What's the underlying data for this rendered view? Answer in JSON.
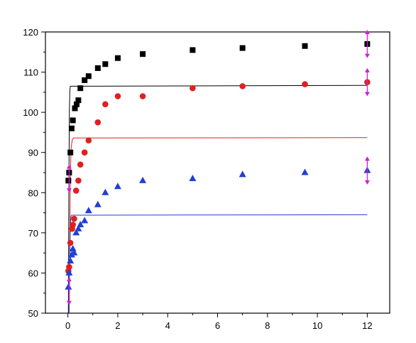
{
  "chart_data": {
    "type": "scatter",
    "title": "",
    "xlabel": "",
    "ylabel": "",
    "xlim": [
      -0.9,
      12.9
    ],
    "ylim": [
      50,
      120
    ],
    "x_ticks": [
      0,
      2,
      4,
      6,
      8,
      10,
      12
    ],
    "y_ticks": [
      50,
      60,
      70,
      80,
      90,
      100,
      110,
      120
    ],
    "grid": false,
    "series": [
      {
        "marker": "square",
        "color": "#000000",
        "points": [
          [
            0.02,
            83
          ],
          [
            0.05,
            85
          ],
          [
            0.1,
            90
          ],
          [
            0.15,
            96
          ],
          [
            0.2,
            98
          ],
          [
            0.28,
            101
          ],
          [
            0.35,
            102
          ],
          [
            0.42,
            103
          ],
          [
            0.5,
            106
          ],
          [
            0.67,
            108
          ],
          [
            0.83,
            109
          ],
          [
            1.2,
            111
          ],
          [
            1.5,
            112
          ],
          [
            2,
            113.5
          ],
          [
            3,
            114.5
          ],
          [
            5,
            115.5
          ],
          [
            7,
            116
          ],
          [
            9.5,
            116.5
          ],
          [
            12,
            117
          ]
        ],
        "fit": [
          [
            0.02,
            50
          ],
          [
            0.04,
            80
          ],
          [
            0.06,
            100
          ],
          [
            0.08,
            105.5
          ],
          [
            0.1,
            106.5
          ],
          [
            12,
            106.7
          ]
        ],
        "error_bar": {
          "x": 12,
          "low": 113.5,
          "high": 120.5
        }
      },
      {
        "marker": "circle",
        "color": "#e02020",
        "points": [
          [
            0.02,
            60.5
          ],
          [
            0.05,
            61.5
          ],
          [
            0.1,
            67.5
          ],
          [
            0.17,
            71
          ],
          [
            0.2,
            72
          ],
          [
            0.25,
            73.5
          ],
          [
            0.33,
            80.5
          ],
          [
            0.42,
            83
          ],
          [
            0.5,
            87
          ],
          [
            0.67,
            90
          ],
          [
            0.83,
            93
          ],
          [
            1.2,
            97.5
          ],
          [
            1.5,
            102
          ],
          [
            2,
            104
          ],
          [
            3,
            104
          ],
          [
            5,
            106
          ],
          [
            7,
            106.5
          ],
          [
            9.5,
            107
          ],
          [
            12,
            107.5
          ]
        ],
        "fit": [
          [
            0.05,
            50
          ],
          [
            0.08,
            70
          ],
          [
            0.1,
            85
          ],
          [
            0.13,
            91
          ],
          [
            0.17,
            93
          ],
          [
            0.22,
            93.6
          ],
          [
            12,
            93.7
          ]
        ],
        "error_bar": {
          "x": 12,
          "low": 104,
          "high": 111
        }
      },
      {
        "marker": "triangle",
        "color": "#1f3fd6",
        "points": [
          [
            0.02,
            56.5
          ],
          [
            0.05,
            60
          ],
          [
            0.1,
            63
          ],
          [
            0.15,
            64.5
          ],
          [
            0.2,
            66
          ],
          [
            0.25,
            65
          ],
          [
            0.33,
            70
          ],
          [
            0.42,
            71
          ],
          [
            0.5,
            72
          ],
          [
            0.67,
            73
          ],
          [
            0.83,
            75.5
          ],
          [
            1.2,
            77
          ],
          [
            1.5,
            80
          ],
          [
            2,
            81.5
          ],
          [
            3,
            83
          ],
          [
            5,
            83.5
          ],
          [
            7,
            84.5
          ],
          [
            9.5,
            85
          ],
          [
            12,
            85.5
          ]
        ],
        "fit": [
          [
            0.05,
            50
          ],
          [
            0.08,
            65
          ],
          [
            0.1,
            72
          ],
          [
            0.12,
            74
          ],
          [
            0.15,
            74.4
          ],
          [
            12,
            74.5
          ]
        ],
        "error_bar": {
          "x": 12,
          "low": 82,
          "high": 89
        }
      }
    ],
    "extra_error_bars": [
      {
        "x": 0.05,
        "low": 52,
        "high": 59
      },
      {
        "x": 0.05,
        "low": 80,
        "high": 87
      }
    ],
    "error_bar_color": "#d020d0"
  }
}
